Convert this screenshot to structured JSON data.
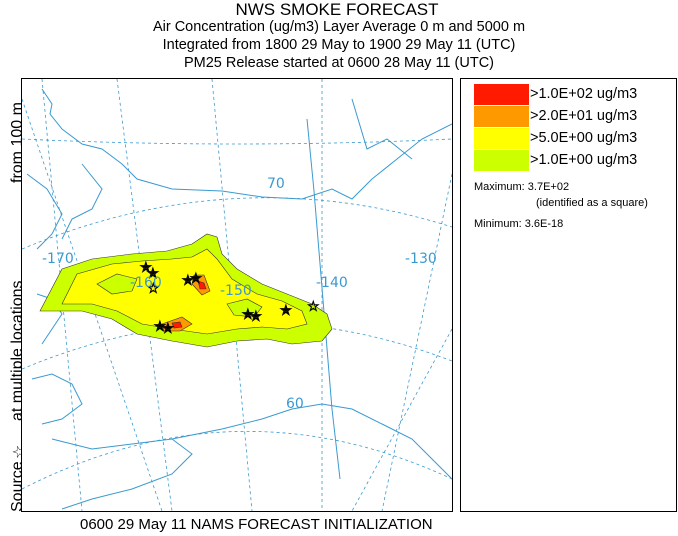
{
  "header": {
    "title": "NWS SMOKE FORECAST",
    "line2": "Air Concentration (ug/m3) Layer Average    0 m and  5000 m",
    "line3": "Integrated from 1800 29 May to 1900 29 May 11 (UTC)",
    "line4": "PM25 Release started at 0600 28 May 11 (UTC)"
  },
  "side": {
    "part1": "Source",
    "star": "☆",
    "part2": "at multiple locations",
    "part3": "from   100 m"
  },
  "legend": {
    "items": [
      {
        "label": ">1.0E+02 ug/m3",
        "color": "#ff1a00"
      },
      {
        "label": ">2.0E+01 ug/m3",
        "color": "#ff9900"
      },
      {
        "label": ">5.0E+00 ug/m3",
        "color": "#ffff00"
      },
      {
        "label": ">1.0E+00 ug/m3",
        "color": "#ccff00"
      }
    ],
    "maximum": "Maximum: 3.7E+02",
    "identified": "(identified as a square)",
    "minimum": "Minimum: 3.6E-18"
  },
  "map": {
    "labels": {
      "lon170": "-170",
      "lon160": "-160",
      "lon150": "-150",
      "lon140": "-140",
      "lon130": "-130",
      "lat70": "70",
      "lat60": "60"
    },
    "colors": {
      "coast": "#3a9ad0",
      "grid": "#3a9ad0",
      "plume_low": "#ccff00",
      "plume_mid": "#ffff00",
      "plume_high": "#ff9900",
      "plume_max": "#ff1a00"
    }
  },
  "footer": "0600 29 May 11 NAMS FORECAST INITIALIZATION"
}
